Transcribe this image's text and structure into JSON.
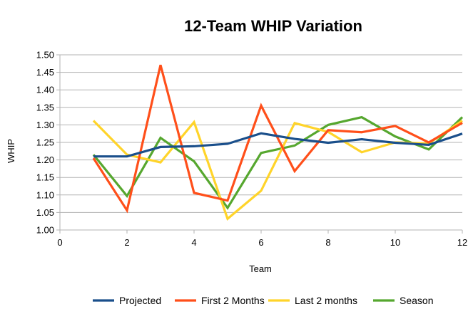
{
  "chart_data": {
    "type": "line",
    "title": "12-Team WHIP Variation",
    "xlabel": "Team",
    "ylabel": "WHIP",
    "xlim": [
      0,
      12
    ],
    "ylim": [
      1.0,
      1.5
    ],
    "x_ticks": [
      "0",
      "2",
      "4",
      "6",
      "8",
      "10",
      "12"
    ],
    "y_ticks": [
      "1.00",
      "1.05",
      "1.10",
      "1.15",
      "1.20",
      "1.25",
      "1.30",
      "1.35",
      "1.40",
      "1.45",
      "1.50"
    ],
    "grid": "horizontal",
    "legend_position": "bottom",
    "x": [
      1,
      2,
      3,
      4,
      5,
      6,
      7,
      8,
      9,
      10,
      11,
      12
    ],
    "series": [
      {
        "name": "Projected",
        "color": "#1a4f8b",
        "values": [
          1.21,
          1.21,
          1.237,
          1.239,
          1.246,
          1.276,
          1.26,
          1.249,
          1.259,
          1.249,
          1.243,
          1.275
        ]
      },
      {
        "name": "First 2 Months",
        "color": "#ff4f1a",
        "values": [
          1.205,
          1.056,
          1.471,
          1.106,
          1.084,
          1.355,
          1.168,
          1.285,
          1.279,
          1.297,
          1.25,
          1.306
        ]
      },
      {
        "name": "Last 2 months",
        "color": "#ffd42a",
        "values": [
          1.312,
          1.215,
          1.193,
          1.308,
          1.032,
          1.112,
          1.305,
          1.28,
          1.222,
          1.25,
          1.247,
          1.312
        ]
      },
      {
        "name": "Season",
        "color": "#56a72f",
        "values": [
          1.215,
          1.097,
          1.263,
          1.196,
          1.063,
          1.22,
          1.241,
          1.3,
          1.322,
          1.267,
          1.23,
          1.322
        ]
      }
    ]
  }
}
